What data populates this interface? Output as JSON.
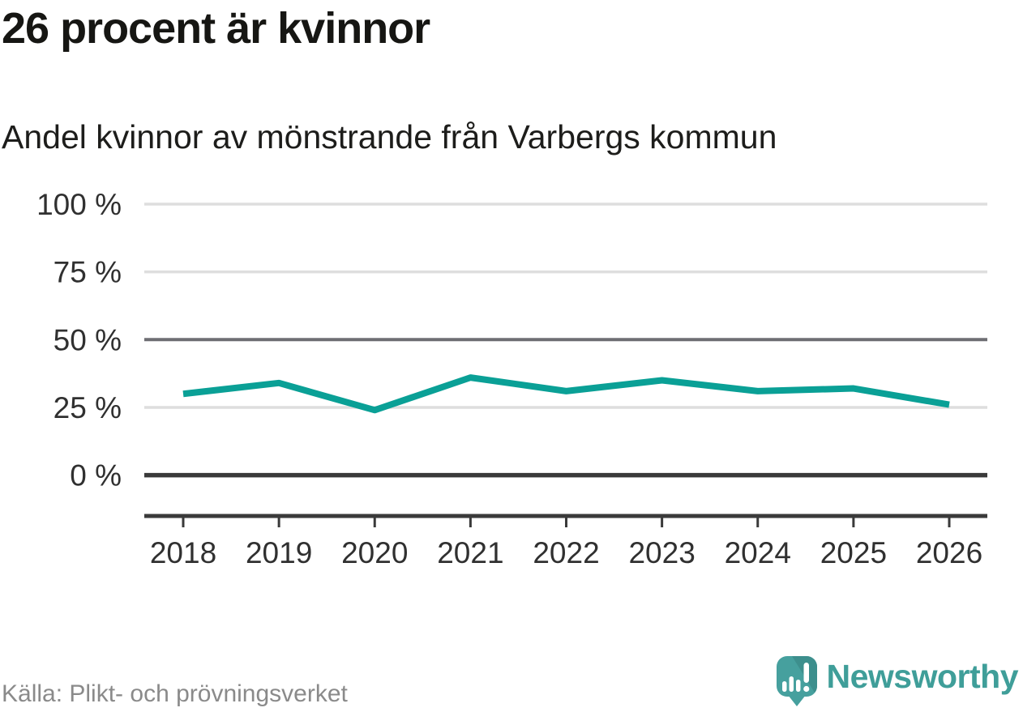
{
  "header": {
    "title": "26 procent är kvinnor",
    "subtitle": "Andel kvinnor av mönstrande från Varbergs kommun"
  },
  "chart_data": {
    "type": "line",
    "title": "26 procent är kvinnor",
    "subtitle": "Andel kvinnor av mönstrande från Varbergs kommun",
    "categories": [
      "2018",
      "2019",
      "2020",
      "2021",
      "2022",
      "2023",
      "2024",
      "2025",
      "2026"
    ],
    "series": [
      {
        "name": "Andel kvinnor av mönstrande",
        "values": [
          30,
          34,
          24,
          36,
          31,
          35,
          31,
          32,
          26
        ]
      }
    ],
    "xlabel": "",
    "ylabel": "",
    "ylim": [
      0,
      100
    ],
    "yticks": [
      0,
      25,
      50,
      75,
      100
    ],
    "ytick_suffix": " %",
    "grid": "horizontal",
    "legend_position": "none",
    "reference_line_at": 50,
    "colors": {
      "line": "#0aa096",
      "grid_light": "#dedede",
      "grid_reference": "#6e6e73",
      "axis_dark": "#3a3a3a",
      "tick_label": "#303030"
    }
  },
  "footer": {
    "source": "Källa: Plikt- och prövningsverket"
  },
  "logo": {
    "name": "Newsworthy",
    "text_color": "#3f9e99",
    "icon_color": "#46a09e",
    "icon_fold_color": "#3d8f8d"
  }
}
